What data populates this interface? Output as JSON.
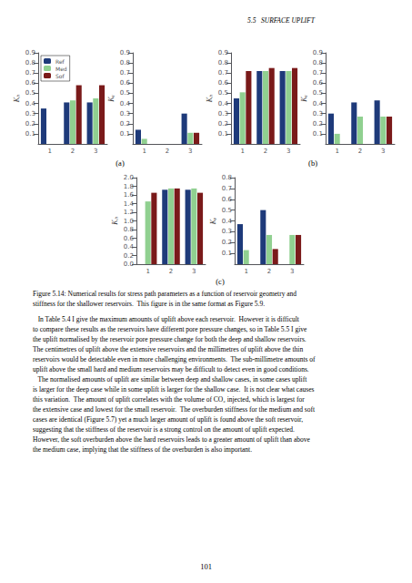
{
  "header": "5.5   SURFACE UPLIFT",
  "chart_data": [
    {
      "type": "bar",
      "categories": [
        "1",
        "2",
        "3"
      ],
      "ylabel": "Kₕ",
      "ylim": [
        0.0,
        0.9
      ],
      "yticks": [
        0.1,
        0.2,
        0.3,
        0.4,
        0.5,
        0.6,
        0.7,
        0.8,
        0.9
      ],
      "grid": false,
      "legend": "upper left",
      "series": [
        {
          "name": "Ref",
          "color": "#1e3a7a",
          "values": [
            0.35,
            0.41,
            0.41
          ]
        },
        {
          "name": "Med",
          "color": "#90d090",
          "values": [
            0.0,
            0.43,
            0.45
          ]
        },
        {
          "name": "Sof",
          "color": "#7a1a1a",
          "values": [
            0.0,
            0.58,
            0.58
          ]
        }
      ]
    },
    {
      "type": "bar",
      "categories": [
        "1",
        "2",
        "3"
      ],
      "ylabel": "Kᵥ",
      "ylim": [
        0.0,
        0.9
      ],
      "yticks": [
        0.1,
        0.2,
        0.3,
        0.4,
        0.5,
        0.6,
        0.7,
        0.8,
        0.9
      ],
      "grid": false,
      "series": [
        {
          "color": "#1e3a7a",
          "values": [
            0.14,
            0.0,
            0.3
          ]
        },
        {
          "color": "#90d090",
          "values": [
            0.05,
            0.0,
            0.11
          ]
        },
        {
          "color": "#7a1a1a",
          "values": [
            0.0,
            0.0,
            0.11
          ]
        }
      ]
    },
    {
      "type": "bar",
      "categories": [
        "1",
        "2",
        "3"
      ],
      "ylabel": "Kₕ",
      "ylim": [
        0.0,
        0.9
      ],
      "yticks": [
        0.1,
        0.2,
        0.3,
        0.4,
        0.5,
        0.6,
        0.7,
        0.8,
        0.9
      ],
      "grid": false,
      "series": [
        {
          "color": "#1e3a7a",
          "values": [
            0.45,
            0.72,
            0.72
          ]
        },
        {
          "color": "#90d090",
          "values": [
            0.51,
            0.72,
            0.72
          ]
        },
        {
          "color": "#7a1a1a",
          "values": [
            0.72,
            0.75,
            0.75
          ]
        }
      ]
    },
    {
      "type": "bar",
      "categories": [
        "1",
        "2",
        "3"
      ],
      "ylabel": "Kᵥ",
      "ylim": [
        0.0,
        0.9
      ],
      "yticks": [
        0.1,
        0.2,
        0.3,
        0.4,
        0.5,
        0.6,
        0.7,
        0.8,
        0.9
      ],
      "grid": false,
      "series": [
        {
          "color": "#1e3a7a",
          "values": [
            0.3,
            0.41,
            0.43
          ]
        },
        {
          "color": "#90d090",
          "values": [
            0.1,
            0.27,
            0.27
          ]
        },
        {
          "color": "#7a1a1a",
          "values": [
            0.0,
            0.0,
            0.27
          ]
        }
      ]
    },
    {
      "type": "bar",
      "categories": [
        "1",
        "2",
        "3"
      ],
      "ylabel": "Kₕ",
      "ylim": [
        0.0,
        2.0
      ],
      "yticks": [
        {
          "value": 0.0,
          "label": "0.0"
        },
        0.2,
        0.4,
        0.6,
        0.8,
        {
          "value": 1.0,
          "label": "1.0"
        },
        1.2,
        1.4,
        1.6,
        1.8,
        {
          "value": 2.0,
          "label": "2.0"
        }
      ],
      "grid": false,
      "series": [
        {
          "color": "#1e3a7a",
          "values": [
            0.0,
            1.72,
            1.72
          ]
        },
        {
          "color": "#90d090",
          "values": [
            1.45,
            1.75,
            1.75
          ]
        },
        {
          "color": "#7a1a1a",
          "values": [
            1.65,
            1.75,
            1.65
          ]
        }
      ]
    },
    {
      "type": "bar",
      "categories": [
        "1",
        "2",
        "3"
      ],
      "ylabel": "Kᵥ",
      "ylim": [
        0.0,
        0.8
      ],
      "yticks": [
        0.1,
        0.2,
        0.3,
        0.4,
        0.5,
        0.6,
        0.7,
        0.8
      ],
      "grid": false,
      "series": [
        {
          "color": "#1e3a7a",
          "values": [
            0.37,
            0.5,
            0.0
          ]
        },
        {
          "color": "#90d090",
          "values": [
            0.13,
            0.27,
            0.27
          ]
        },
        {
          "color": "#7a1a1a",
          "values": [
            0.0,
            0.14,
            0.27
          ]
        }
      ]
    }
  ],
  "figure_labels": [
    "(a)",
    "(b)",
    "(c)"
  ],
  "caption": [
    "Figure 5.14: Numerical results for stress path parameters as a function of reservoir geometry and",
    "stiffness for the shallower reservoirs.  This figure is in the same format as Figure 5.9."
  ],
  "body_text": [
    "   In Table 5.4 I give the maximum amounts of uplift above each reservoir.  However it is difficult",
    "to compare these results as the reservoirs have different pore pressure changes, so in Table 5.5 I give",
    "the uplift normalised by the reservoir pore pressure change for both the deep and shallow reservoirs.",
    "The centimetres of uplift above the extensive reservoirs and the millimetres of uplift above the thin",
    "reservoirs would be detectable even in more challenging environments.  The sub-millimetre amounts of",
    "uplift above the small hard and medium reservoirs may be difficult to detect even in good conditions.",
    "   The normalised amounts of uplift are similar between deep and shallow cases, in some cases uplift",
    "is larger for the deep case while in some uplift is larger for the shallow case.  It is not clear what causes",
    "this variation.  The amount of uplift correlates with the volume of CO₂ injected, which is largest for",
    "the extensive case and lowest for the small reservoir.  The overburden stiffness for the medium and soft",
    "cases are identical (Figure 5.7) yet a much larger amount of uplift is found above the soft reservoir,",
    "suggesting that the stiffness of the reservoir is a strong control on the amount of uplift expected.",
    "However, the soft overburden above the hard reservoirs leads to a greater amount of uplift than above",
    "the medium case, implying that the stiffness of the overburden is also important."
  ],
  "page_number": "101"
}
